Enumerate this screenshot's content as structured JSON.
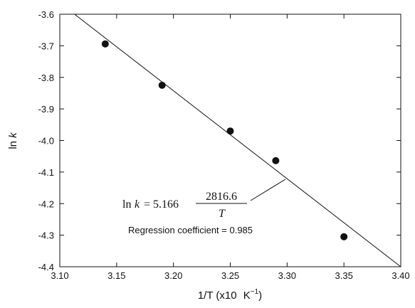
{
  "chart_data": {
    "type": "scatter",
    "xlabel_main": "1/T (x10",
    "xlabel_unit": "K",
    "xlabel_exp": "−1",
    "xlabel_close": ")",
    "ylabel_prefix": "ln ",
    "ylabel_var": "k",
    "xlim": [
      3.1,
      3.4
    ],
    "ylim": [
      -4.4,
      -3.6
    ],
    "x_ticks": [
      "3.10",
      "3.15",
      "3.20",
      "3.25",
      "3.30",
      "3.35",
      "3.40"
    ],
    "y_ticks": [
      "-3.6",
      "-3.7",
      "-3.8",
      "-3.9",
      "-4.0",
      "-4.1",
      "-4.2",
      "-4.3",
      "-4.4"
    ],
    "points": [
      {
        "x": 3.14,
        "y": -3.694
      },
      {
        "x": 3.19,
        "y": -3.825
      },
      {
        "x": 3.25,
        "y": -3.97
      },
      {
        "x": 3.29,
        "y": -4.064
      },
      {
        "x": 3.35,
        "y": -4.305
      }
    ],
    "fit_line": {
      "x_start": 3.113,
      "y_start": -3.6,
      "x_end": 3.4,
      "y_end": -4.4
    },
    "equation": {
      "lhs_func": "ln",
      "lhs_var": "k",
      "rhs": "= 5.166",
      "numerator": "2816.6",
      "denominator": "T"
    },
    "regression_text": "Regression coefficient = 0.985",
    "grid": false,
    "legend": false
  }
}
